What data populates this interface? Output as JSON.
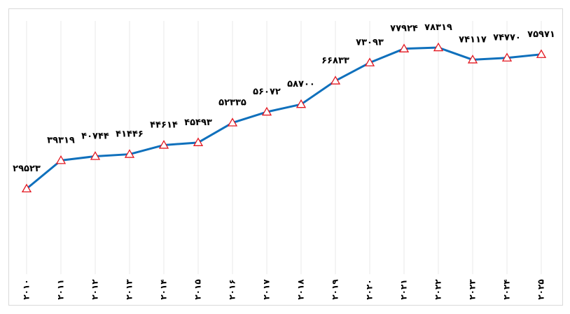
{
  "colors": {
    "line": "#0f70bc",
    "marker_stroke": "#e3161f",
    "marker_fill": "#ffffff",
    "grid": "#e8e8e8",
    "border": "#d9d9d9"
  },
  "chart_data": {
    "type": "line",
    "title": "",
    "xlabel": "",
    "ylabel": "",
    "grid": "vertical",
    "legend": "none",
    "marker": "triangle",
    "ylim": [
      0,
      88000
    ],
    "categories": [
      "2010",
      "2011",
      "2012",
      "2013",
      "2014",
      "2015",
      "2016",
      "2017",
      "2018",
      "2019",
      "2020",
      "2021",
      "2022",
      "2023",
      "2024",
      "2025"
    ],
    "category_labels": [
      "۲۰۱۰",
      "۲۰۱۱",
      "۲۰۱۲",
      "۲۰۱۳",
      "۲۰۱۴",
      "۲۰۱۵",
      "۲۰۱۶",
      "۲۰۱۷",
      "۲۰۱۸",
      "۲۰۱۹",
      "۲۰۲۰",
      "۲۰۲۱",
      "۲۰۲۲",
      "۲۰۲۳",
      "۲۰۲۴",
      "۲۰۲۵"
    ],
    "values": [
      29523,
      39319,
      40744,
      41446,
      44614,
      45493,
      52335,
      56072,
      58700,
      66833,
      73093,
      77924,
      78319,
      74117,
      74770,
      75971
    ],
    "value_labels": [
      "۲۹۵۲۳",
      "۳۹۳۱۹",
      "۴۰۷۴۴",
      "۴۱۴۴۶",
      "۴۴۶۱۴",
      "۴۵۴۹۳",
      "۵۲۳۳۵",
      "۵۶۰۷۲",
      "۵۸۷۰۰",
      "۶۶۸۳۳",
      "۷۳۰۹۳",
      "۷۷۹۲۴",
      "۷۸۳۱۹",
      "۷۴۱۱۷",
      "۷۴۷۷۰",
      "۷۵۹۷۱"
    ]
  }
}
